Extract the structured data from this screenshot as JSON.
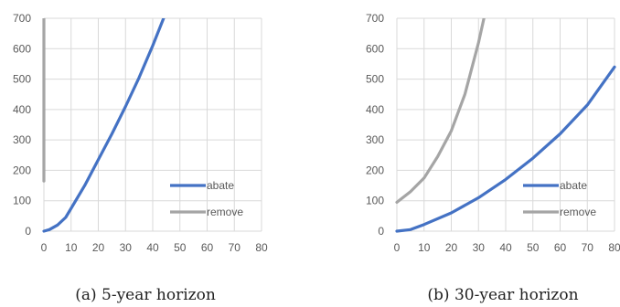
{
  "colors": {
    "abate": "#4472c4",
    "remove": "#a5a5a5",
    "grid": "#d9d9d9",
    "tick_text": "#595959"
  },
  "chart_data": [
    {
      "type": "line",
      "caption": "(a) 5-year horizon",
      "x_ticks": [
        "0",
        "10",
        "20",
        "30",
        "40",
        "50",
        "60",
        "70",
        "80"
      ],
      "y_ticks": [
        "0",
        "100",
        "200",
        "300",
        "400",
        "500",
        "600",
        "700"
      ],
      "xlim": [
        0,
        80
      ],
      "ylim": [
        0,
        700
      ],
      "grid": true,
      "legend_position": "bottom-right",
      "series": [
        {
          "name": "abate",
          "color": "#4472c4",
          "x": [
            0,
            2,
            5,
            8,
            10,
            15,
            20,
            25,
            30,
            35,
            40,
            44
          ],
          "y": [
            0,
            5,
            20,
            45,
            75,
            150,
            235,
            320,
            410,
            505,
            610,
            700
          ]
        },
        {
          "name": "remove",
          "color": "#a5a5a5",
          "x": [
            0,
            0
          ],
          "y": [
            165,
            700
          ]
        }
      ]
    },
    {
      "type": "line",
      "caption": "(b) 30-year horizon",
      "x_ticks": [
        "0",
        "10",
        "20",
        "30",
        "40",
        "50",
        "60",
        "70",
        "80"
      ],
      "y_ticks": [
        "0",
        "100",
        "200",
        "300",
        "400",
        "500",
        "600",
        "700"
      ],
      "xlim": [
        0,
        80
      ],
      "ylim": [
        0,
        700
      ],
      "grid": true,
      "legend_position": "bottom-right",
      "series": [
        {
          "name": "abate",
          "color": "#4472c4",
          "x": [
            0,
            5,
            10,
            20,
            30,
            40,
            50,
            60,
            70,
            80
          ],
          "y": [
            0,
            5,
            22,
            60,
            110,
            170,
            240,
            320,
            415,
            540
          ]
        },
        {
          "name": "remove",
          "color": "#a5a5a5",
          "x": [
            0,
            5,
            10,
            15,
            20,
            25,
            30,
            32
          ],
          "y": [
            95,
            130,
            175,
            245,
            330,
            450,
            620,
            700
          ]
        }
      ]
    }
  ]
}
